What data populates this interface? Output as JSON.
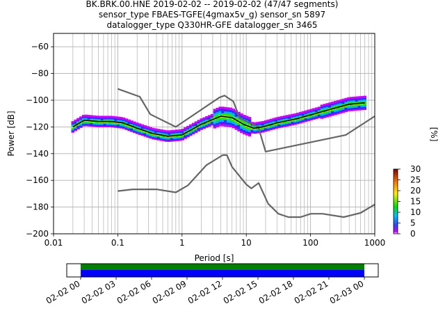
{
  "title": {
    "line1": "BK.BRK.00.HNE   2019-02-02 -- 2019-02-02  (47/47 segments)",
    "line2": "sensor_type FBAES-TGFE(4gmax5v_g) sensor_sn 5897",
    "line3": "datalogger_type Q330HR-GFE datalogger_sn 3465"
  },
  "chart_data": [
    {
      "type": "heatmap",
      "title": "BK.BRK.00.HNE   2019-02-02 -- 2019-02-02  (47/47 segments)",
      "xlabel": "Period [s]",
      "ylabel": "Power [dB]",
      "xscale": "log",
      "xlim": [
        0.01,
        1000
      ],
      "ylim": [
        -200,
        -50
      ],
      "x_ticks": [
        0.01,
        0.1,
        1,
        10,
        100,
        1000
      ],
      "x_tick_labels": [
        "0.01",
        "0.1",
        "1",
        "10",
        "100",
        "1000"
      ],
      "y_ticks": [
        -200,
        -180,
        -160,
        -140,
        -120,
        -100,
        -80,
        -60
      ],
      "y_tick_labels": [
        "−200",
        "−180",
        "−160",
        "−140",
        "−120",
        "−100",
        "−80",
        "−60"
      ],
      "grid": true,
      "colorbar": {
        "label": "[%]",
        "range": [
          0,
          30
        ],
        "ticks": [
          0,
          5,
          10,
          15,
          20,
          25,
          30
        ],
        "tick_labels": [
          "0",
          "5",
          "10",
          "15",
          "20",
          "25",
          "30"
        ]
      },
      "series": [
        {
          "role": "noise-model-high",
          "color": "#666666",
          "x": [
            0.1,
            0.22,
            0.32,
            0.8,
            3.8,
            4.6,
            6.3,
            7.9,
            15.4,
            20,
            354.8,
            1000
          ],
          "y": [
            -91.5,
            -97.4,
            -110.5,
            -120,
            -98,
            -96.5,
            -101,
            -113.5,
            -120,
            -138.5,
            -126,
            -112
          ]
        },
        {
          "role": "noise-model-low",
          "color": "#666666",
          "x": [
            0.1,
            0.17,
            0.4,
            0.8,
            1.24,
            2.4,
            4.3,
            5,
            6,
            10,
            12,
            15.6,
            21.9,
            31.6,
            45,
            70,
            101,
            154,
            328,
            600,
            1000
          ],
          "y": [
            -168,
            -166.7,
            -166.7,
            -169,
            -163.7,
            -148.6,
            -141.1,
            -141.1,
            -149.9,
            -163,
            -166,
            -162,
            -177.5,
            -185,
            -187.5,
            -187.5,
            -185,
            -185,
            -187.5,
            -184.4,
            -178
          ]
        },
        {
          "role": "median-psd",
          "color": "#000000",
          "x": [
            0.02,
            0.03,
            0.05,
            0.08,
            0.12,
            0.2,
            0.35,
            0.6,
            1,
            2,
            4,
            6,
            9,
            13,
            18,
            30,
            60,
            100,
            200,
            400,
            700
          ],
          "y": [
            -120,
            -115,
            -116,
            -116,
            -117,
            -121,
            -125,
            -127,
            -126,
            -118,
            -112,
            -113,
            -118,
            -121,
            -120,
            -117,
            -114,
            -111,
            -107,
            -103,
            -102
          ]
        }
      ]
    },
    {
      "type": "bar",
      "role": "data-availability",
      "xlim": [
        "02-02 00",
        "02-03 00"
      ],
      "x_tick_labels": [
        "02-02 00",
        "02-02 03",
        "02-02 06",
        "02-02 09",
        "02-02 12",
        "02-02 15",
        "02-02 18",
        "02-02 21",
        "02-03 00"
      ],
      "series": [
        {
          "role": "data-coverage",
          "color": "#008000",
          "start": 0,
          "end": 24
        },
        {
          "role": "psd-coverage",
          "color": "#0000ff",
          "start": 0,
          "end": 24
        }
      ]
    }
  ]
}
